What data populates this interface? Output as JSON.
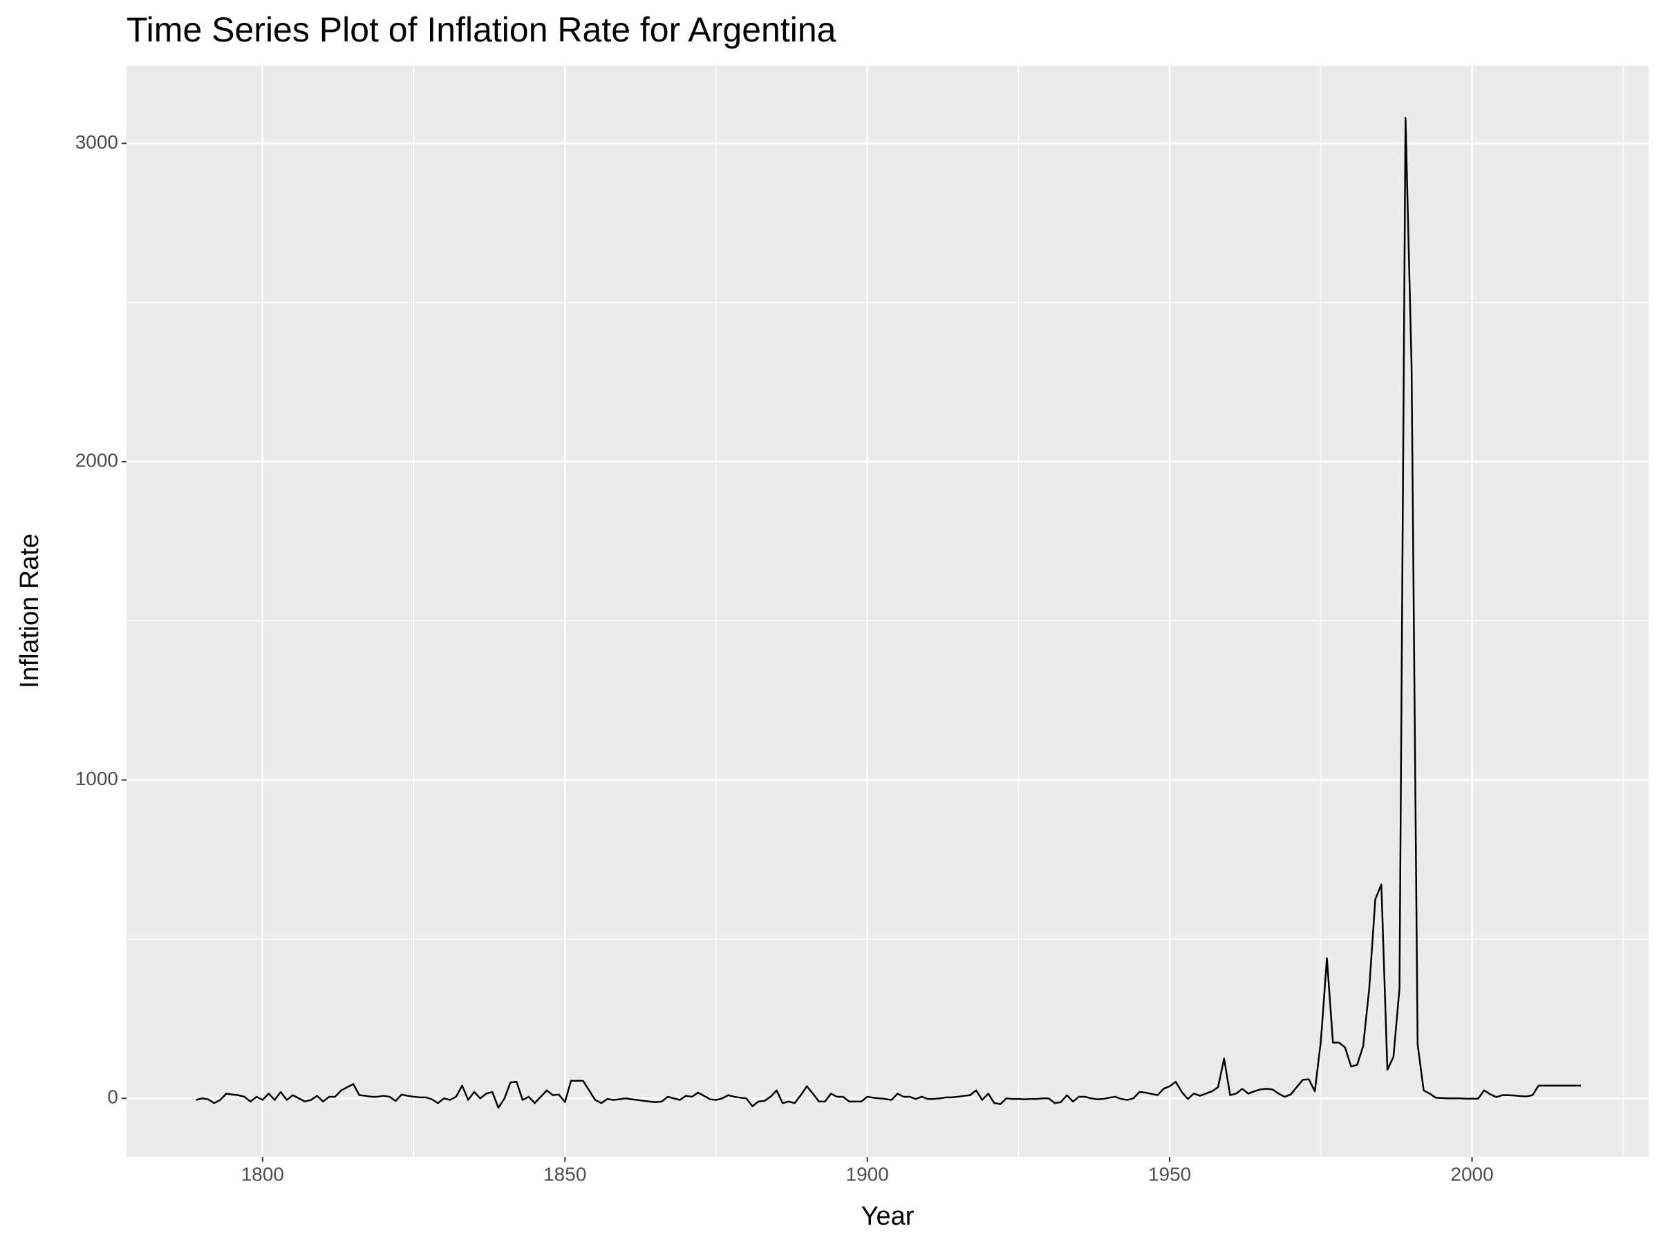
{
  "chart_data": {
    "type": "line",
    "title": "Time Series Plot of Inflation Rate for Argentina",
    "x_label": "Year",
    "y_label": "Inflation Rate",
    "x": [
      1789,
      1790,
      1791,
      1792,
      1793,
      1794,
      1795,
      1796,
      1797,
      1798,
      1799,
      1800,
      1801,
      1802,
      1803,
      1804,
      1805,
      1806,
      1807,
      1808,
      1809,
      1810,
      1811,
      1812,
      1813,
      1814,
      1815,
      1816,
      1817,
      1818,
      1819,
      1820,
      1821,
      1822,
      1823,
      1824,
      1825,
      1826,
      1827,
      1828,
      1829,
      1830,
      1831,
      1832,
      1833,
      1834,
      1835,
      1836,
      1837,
      1838,
      1839,
      1840,
      1841,
      1842,
      1843,
      1844,
      1845,
      1846,
      1847,
      1848,
      1849,
      1850,
      1851,
      1852,
      1853,
      1854,
      1855,
      1856,
      1857,
      1858,
      1859,
      1860,
      1861,
      1862,
      1863,
      1864,
      1865,
      1866,
      1867,
      1868,
      1869,
      1870,
      1871,
      1872,
      1873,
      1874,
      1875,
      1876,
      1877,
      1878,
      1879,
      1880,
      1881,
      1882,
      1883,
      1884,
      1885,
      1886,
      1887,
      1888,
      1889,
      1890,
      1891,
      1892,
      1893,
      1894,
      1895,
      1896,
      1897,
      1898,
      1899,
      1900,
      1901,
      1902,
      1903,
      1904,
      1905,
      1906,
      1907,
      1908,
      1909,
      1910,
      1911,
      1912,
      1913,
      1914,
      1915,
      1916,
      1917,
      1918,
      1919,
      1920,
      1921,
      1922,
      1923,
      1924,
      1925,
      1926,
      1927,
      1928,
      1929,
      1930,
      1931,
      1932,
      1933,
      1934,
      1935,
      1936,
      1937,
      1938,
      1939,
      1940,
      1941,
      1942,
      1943,
      1944,
      1945,
      1946,
      1947,
      1948,
      1949,
      1950,
      1951,
      1952,
      1953,
      1954,
      1955,
      1956,
      1957,
      1958,
      1959,
      1960,
      1961,
      1962,
      1963,
      1964,
      1965,
      1966,
      1967,
      1968,
      1969,
      1970,
      1971,
      1972,
      1973,
      1974,
      1975,
      1976,
      1977,
      1978,
      1979,
      1980,
      1981,
      1982,
      1983,
      1984,
      1985,
      1986,
      1987,
      1988,
      1989,
      1990,
      1991,
      1992,
      1993,
      1994,
      1995,
      1996,
      1997,
      1998,
      1999,
      2000,
      2001,
      2002,
      2003,
      2004,
      2005,
      2006,
      2007,
      2008,
      2009,
      2010,
      2011,
      2012,
      2013,
      2014,
      2015,
      2016,
      2017,
      2018
    ],
    "series": [
      {
        "color": "#000000",
        "values": [
          -5,
          0,
          -3,
          -15,
          -5,
          15,
          12,
          10,
          5,
          -10,
          5,
          -5,
          15,
          -5,
          20,
          -5,
          10,
          0,
          -10,
          -5,
          8,
          -10,
          5,
          5,
          25,
          35,
          45,
          10,
          8,
          5,
          5,
          8,
          5,
          -8,
          12,
          8,
          5,
          3,
          3,
          -3,
          -15,
          0,
          -5,
          5,
          40,
          -5,
          20,
          0,
          15,
          20,
          -30,
          0,
          50,
          52,
          -5,
          5,
          -15,
          5,
          25,
          10,
          12,
          -12,
          55,
          55,
          55,
          25,
          -5,
          -15,
          -2,
          -5,
          -3,
          0,
          -3,
          -5,
          -8,
          -10,
          -12,
          -10,
          5,
          0,
          -5,
          8,
          5,
          18,
          8,
          -3,
          -5,
          0,
          10,
          5,
          2,
          0,
          -25,
          -10,
          -8,
          5,
          25,
          -15,
          -10,
          -15,
          10,
          38,
          15,
          -10,
          -10,
          15,
          5,
          5,
          -10,
          -10,
          -10,
          5,
          2,
          0,
          -2,
          -5,
          15,
          5,
          5,
          -2,
          5,
          -2,
          -2,
          0,
          3,
          3,
          5,
          8,
          10,
          25,
          -5,
          15,
          -15,
          -18,
          0,
          -2,
          -2,
          -3,
          -2,
          -2,
          0,
          0,
          -15,
          -12,
          10,
          -10,
          5,
          5,
          0,
          -3,
          -2,
          2,
          5,
          -2,
          -5,
          0,
          20,
          18,
          14,
          10,
          30,
          38,
          52,
          20,
          -2,
          15,
          8,
          15,
          22,
          35,
          125,
          10,
          15,
          30,
          15,
          22,
          28,
          30,
          28,
          15,
          5,
          12,
          35,
          58,
          60,
          22,
          180,
          440,
          175,
          175,
          160,
          100,
          105,
          165,
          345,
          625,
          672,
          90,
          130,
          345,
          3080,
          2300,
          170,
          25,
          15,
          2,
          1,
          0,
          0,
          0,
          -1,
          -1,
          -1,
          25,
          13,
          4,
          10,
          10,
          9,
          7,
          6,
          10,
          40,
          40,
          40,
          40,
          40,
          40,
          40,
          40
        ]
      }
    ],
    "xlim": [
      1777.5,
      2029.2
    ],
    "ylim": [
      -184,
      3244
    ],
    "xticks": [
      1800,
      1850,
      1900,
      1950,
      2000
    ],
    "yticks": [
      0,
      1000,
      2000,
      3000
    ],
    "grid": true
  }
}
